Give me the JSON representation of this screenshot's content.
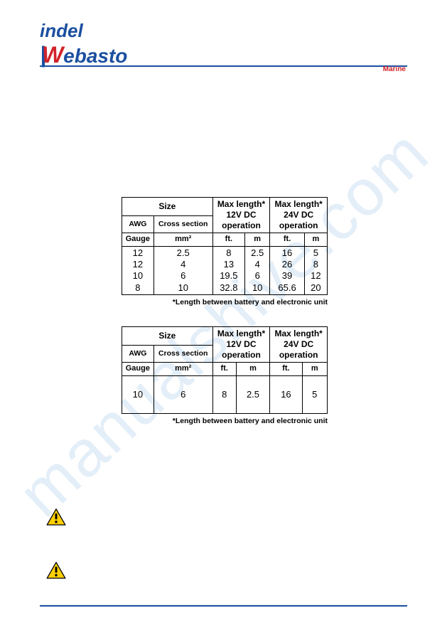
{
  "logo": {
    "line1": "indel",
    "w": "W",
    "ebasto": "ebasto",
    "marine": "Marine"
  },
  "watermark": "manualshive.com",
  "table1": {
    "headers": {
      "size": "Size",
      "awg": "AWG",
      "cross": "Cross section",
      "max12": "Max length*\n12V DC\noperation",
      "max24": "Max length*\n24V DC\noperation",
      "gauge": "Gauge",
      "mm2": "mm²",
      "ft": "ft.",
      "m": "m"
    },
    "rows": [
      {
        "awg": "12",
        "mm2": "2.5",
        "ft12": "8",
        "m12": "2.5",
        "ft24": "16",
        "m24": "5"
      },
      {
        "awg": "12",
        "mm2": "4",
        "ft12": "13",
        "m12": "4",
        "ft24": "26",
        "m24": "8"
      },
      {
        "awg": "10",
        "mm2": "6",
        "ft12": "19.5",
        "m12": "6",
        "ft24": "39",
        "m24": "12"
      },
      {
        "awg": "8",
        "mm2": "10",
        "ft12": "32.8",
        "m12": "10",
        "ft24": "65.6",
        "m24": "20"
      }
    ],
    "note": "*Length between battery and electronic unit"
  },
  "table2": {
    "headers": {
      "size": "Size",
      "awg": "AWG",
      "cross": "Cross section",
      "max12": "Max length*\n12V DC\noperation",
      "max24": "Max length*\n24V DC\noperation",
      "gauge": "Gauge",
      "mm2": "mm²",
      "ft": "ft.",
      "m": "m"
    },
    "rows": [
      {
        "awg": "10",
        "mm2": "6",
        "ft12": "8",
        "m12": "2.5",
        "ft24": "16",
        "m24": "5"
      }
    ],
    "note": "*Length between battery and electronic unit"
  },
  "colors": {
    "brand_blue": "#1b4fa0",
    "brand_red": "#d2232a",
    "warn_fill": "#ffcf00",
    "warn_stroke": "#000000",
    "watermark": "#e3eef8"
  }
}
